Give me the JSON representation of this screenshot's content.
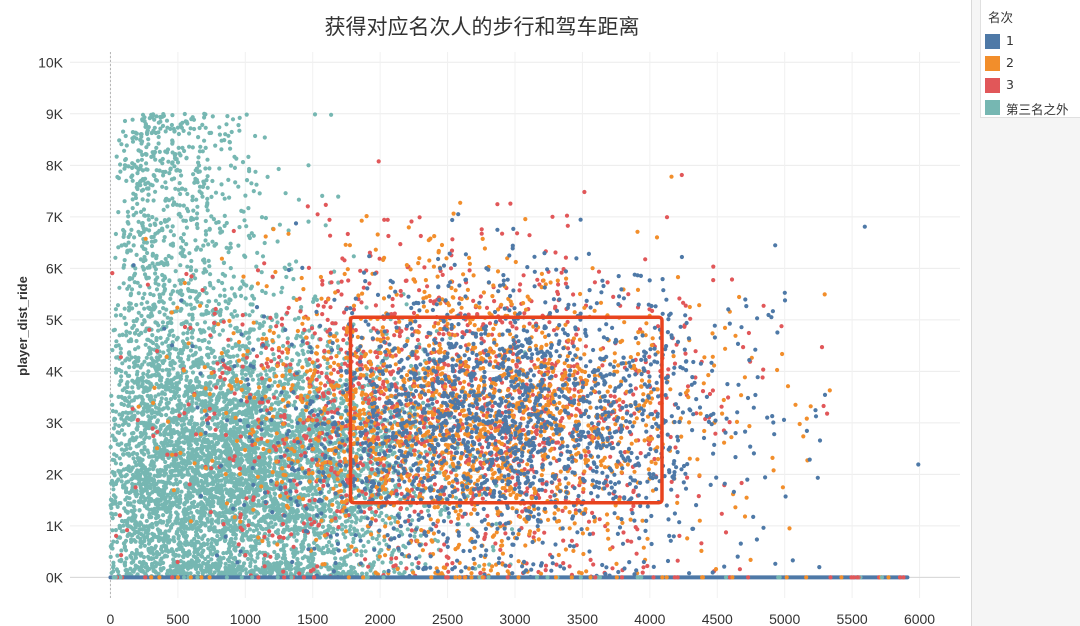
{
  "chart_data": {
    "type": "scatter",
    "title": "获得对应名次人的步行和驾车距离",
    "xlabel": "",
    "ylabel": "player_dist_ride",
    "xlim": [
      -300,
      6300
    ],
    "ylim": [
      -400,
      10200
    ],
    "x_ticks": [
      "0",
      "500",
      "1000",
      "1500",
      "2000",
      "2500",
      "3000",
      "3500",
      "4000",
      "4500",
      "5000",
      "5500",
      "6000"
    ],
    "x_tick_values": [
      0,
      500,
      1000,
      1500,
      2000,
      2500,
      3000,
      3500,
      4000,
      4500,
      5000,
      5500,
      6000
    ],
    "y_ticks": [
      "0K",
      "1K",
      "2K",
      "3K",
      "4K",
      "5K",
      "6K",
      "7K",
      "8K",
      "9K",
      "10K"
    ],
    "y_tick_values": [
      0,
      1000,
      2000,
      3000,
      4000,
      5000,
      6000,
      7000,
      8000,
      9000,
      10000
    ],
    "grid": true,
    "legend_position": "right",
    "legend_title": "名次",
    "series": [
      {
        "name": "1",
        "color": "#4e79a7",
        "center": [
          2900,
          3000
        ],
        "spread": [
          850,
          1700
        ],
        "count": 2000
      },
      {
        "name": "2",
        "color": "#f28e2b",
        "center": [
          2600,
          3100
        ],
        "spread": [
          900,
          1800
        ],
        "count": 1700
      },
      {
        "name": "3",
        "color": "#e15759",
        "center": [
          2500,
          3200
        ],
        "spread": [
          950,
          1900
        ],
        "count": 1400
      },
      {
        "name": "第三名之外",
        "color": "#76b7b2",
        "center": [
          1000,
          2100
        ],
        "spread": [
          650,
          1700
        ],
        "count": 6500
      }
    ],
    "zero_ride_baseline": {
      "y": 0,
      "x_range": [
        0,
        6000
      ]
    },
    "annotation": {
      "type": "rectangle",
      "color": "#e8431e",
      "x_range": [
        1780,
        4090
      ],
      "y_range": [
        1450,
        5050
      ]
    }
  }
}
